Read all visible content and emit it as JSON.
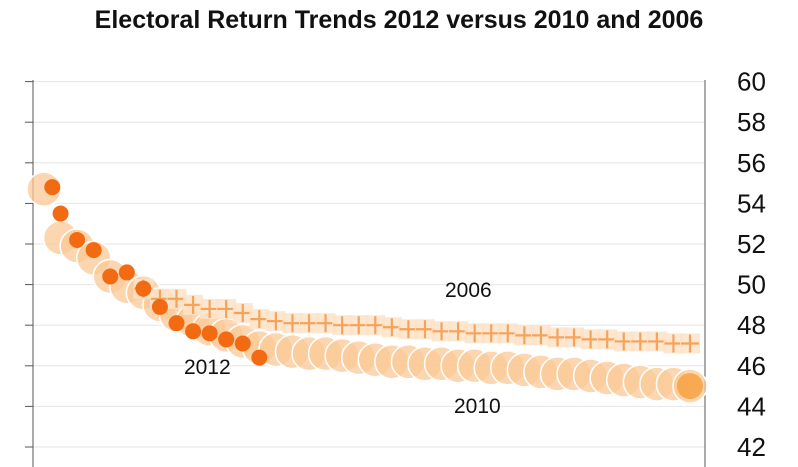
{
  "chart_data": {
    "type": "scatter",
    "title": "Electoral Return Trends 2012 versus 2010 and 2006",
    "xlabel": "",
    "ylabel": "",
    "ylim": [
      42,
      60
    ],
    "yticks": [
      "42",
      "44",
      "46",
      "48",
      "50",
      "52",
      "54",
      "56",
      "58",
      "60"
    ],
    "grid": true,
    "legend": "none",
    "colors": {
      "s2012": "#f26a12",
      "s2010": "#fbc896",
      "s2006": "#f5a25a",
      "box2006": "#fde3c8"
    },
    "annotations": [
      {
        "text": "2006",
        "series": "2006"
      },
      {
        "text": "2012",
        "series": "2012"
      },
      {
        "text": "2010",
        "series": "2010"
      }
    ],
    "series": [
      {
        "id": "2010",
        "marker": "large-circle",
        "x": [
          1,
          2,
          3,
          4,
          5,
          6,
          7,
          8,
          9,
          10,
          11,
          12,
          13,
          14,
          15,
          16,
          17,
          18,
          19,
          20,
          21,
          22,
          23,
          24,
          25,
          26,
          27,
          28,
          29,
          30,
          31,
          32,
          33,
          34,
          35,
          36,
          37,
          38,
          39,
          40
        ],
        "y": [
          54.7,
          52.3,
          51.9,
          51.3,
          50.4,
          49.9,
          49.6,
          49.0,
          48.5,
          48.2,
          47.8,
          47.5,
          47.2,
          46.9,
          46.8,
          46.7,
          46.6,
          46.6,
          46.5,
          46.4,
          46.3,
          46.2,
          46.2,
          46.1,
          46.1,
          46.0,
          46.0,
          45.9,
          45.9,
          45.8,
          45.7,
          45.6,
          45.6,
          45.5,
          45.4,
          45.3,
          45.2,
          45.1,
          45.1,
          45.0
        ]
      },
      {
        "id": "2012",
        "marker": "dot",
        "x": [
          1.5,
          2,
          3,
          4,
          5,
          6,
          7,
          8,
          9,
          10,
          11,
          12,
          13,
          14
        ],
        "y": [
          54.8,
          53.5,
          52.2,
          51.7,
          50.4,
          50.6,
          49.8,
          48.9,
          48.1,
          47.7,
          47.6,
          47.3,
          47.1,
          46.4
        ]
      },
      {
        "id": "2006",
        "marker": "plus",
        "x": [
          7,
          8,
          9,
          10,
          11,
          12,
          13,
          14,
          15,
          16,
          17,
          18,
          19,
          20,
          21,
          22,
          23,
          24,
          25,
          26,
          27,
          28,
          29,
          30,
          31,
          32,
          33,
          34,
          35,
          36,
          37,
          38,
          39,
          40
        ],
        "y": [
          49.8,
          49.3,
          49.3,
          49.0,
          48.8,
          48.8,
          48.6,
          48.3,
          48.2,
          48.1,
          48.1,
          48.1,
          48.0,
          48.0,
          48.0,
          47.9,
          47.8,
          47.8,
          47.7,
          47.7,
          47.6,
          47.6,
          47.6,
          47.5,
          47.5,
          47.4,
          47.4,
          47.3,
          47.3,
          47.2,
          47.2,
          47.2,
          47.1,
          47.1
        ]
      }
    ]
  }
}
